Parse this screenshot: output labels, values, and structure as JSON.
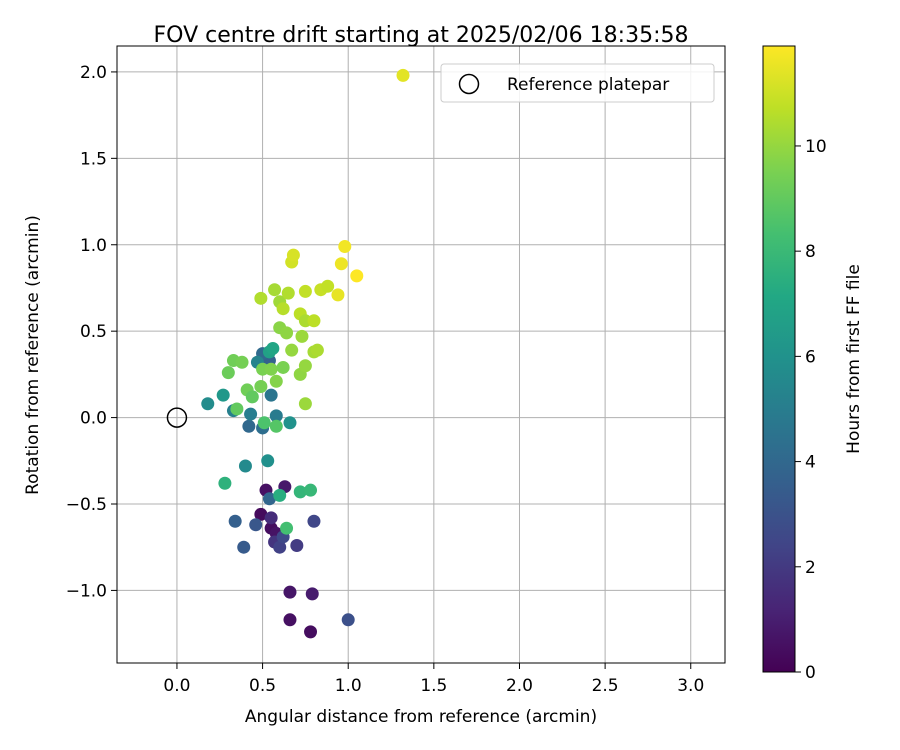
{
  "chart_data": {
    "type": "scatter",
    "title": "FOV centre drift starting at 2025/02/06 18:35:58",
    "xlabel": "Angular distance from reference (arcmin)",
    "ylabel": "Rotation from reference (arcmin)",
    "xlim": [
      -0.35,
      3.2
    ],
    "ylim": [
      -1.42,
      2.15
    ],
    "xticks": [
      "0.0",
      "0.5",
      "1.0",
      "1.5",
      "2.0",
      "2.5",
      "3.0"
    ],
    "yticks": [
      "−1.0",
      "−0.5",
      "0.0",
      "0.5",
      "1.0",
      "1.5",
      "2.0"
    ],
    "grid": true,
    "legend": {
      "position": "top-right",
      "label": "Reference platepar"
    },
    "reference_point": {
      "x": 0.0,
      "y": 0.0
    },
    "colorbar": {
      "label": "Hours from first FF file",
      "range": [
        0,
        11.9
      ],
      "ticks": [
        "0",
        "2",
        "4",
        "6",
        "8",
        "10"
      ],
      "colormap": "viridis"
    },
    "points": [
      {
        "x": 0.49,
        "y": -0.56,
        "h": 0.3
      },
      {
        "x": 0.52,
        "y": -0.42,
        "h": 0.5
      },
      {
        "x": 0.55,
        "y": -0.64,
        "h": 0.4
      },
      {
        "x": 0.58,
        "y": -0.67,
        "h": 0.6
      },
      {
        "x": 0.63,
        "y": -0.4,
        "h": 0.8
      },
      {
        "x": 0.66,
        "y": -1.01,
        "h": 0.7
      },
      {
        "x": 0.66,
        "y": -1.17,
        "h": 0.5
      },
      {
        "x": 0.78,
        "y": -1.24,
        "h": 0.4
      },
      {
        "x": 0.79,
        "y": -1.02,
        "h": 0.9
      },
      {
        "x": 0.55,
        "y": -0.58,
        "h": 1.5
      },
      {
        "x": 0.57,
        "y": -0.72,
        "h": 1.8
      },
      {
        "x": 0.6,
        "y": -0.75,
        "h": 2.3
      },
      {
        "x": 0.62,
        "y": -0.69,
        "h": 2.6
      },
      {
        "x": 0.7,
        "y": -0.74,
        "h": 2.1
      },
      {
        "x": 0.8,
        "y": -0.6,
        "h": 2.5
      },
      {
        "x": 1.0,
        "y": -1.17,
        "h": 2.9
      },
      {
        "x": 0.46,
        "y": -0.62,
        "h": 3.2
      },
      {
        "x": 0.34,
        "y": -0.6,
        "h": 3.6
      },
      {
        "x": 0.39,
        "y": -0.75,
        "h": 3.4
      },
      {
        "x": 0.54,
        "y": -0.47,
        "h": 3.9
      },
      {
        "x": 0.42,
        "y": -0.05,
        "h": 4.0
      },
      {
        "x": 0.5,
        "y": -0.06,
        "h": 4.3
      },
      {
        "x": 0.54,
        "y": 0.33,
        "h": 3.7
      },
      {
        "x": 0.5,
        "y": 0.37,
        "h": 4.1
      },
      {
        "x": 0.55,
        "y": 0.13,
        "h": 4.6
      },
      {
        "x": 0.58,
        "y": 0.01,
        "h": 4.9
      },
      {
        "x": 0.43,
        "y": 0.02,
        "h": 5.0
      },
      {
        "x": 0.33,
        "y": 0.04,
        "h": 5.1
      },
      {
        "x": 0.47,
        "y": 0.32,
        "h": 5.3
      },
      {
        "x": 0.4,
        "y": -0.28,
        "h": 5.6
      },
      {
        "x": 0.53,
        "y": -0.25,
        "h": 5.9
      },
      {
        "x": 0.66,
        "y": -0.03,
        "h": 6.0
      },
      {
        "x": 0.18,
        "y": 0.08,
        "h": 5.7
      },
      {
        "x": 0.27,
        "y": 0.13,
        "h": 6.3
      },
      {
        "x": 0.54,
        "y": 0.38,
        "h": 6.8
      },
      {
        "x": 0.56,
        "y": 0.4,
        "h": 7.0
      },
      {
        "x": 0.6,
        "y": -0.45,
        "h": 7.4
      },
      {
        "x": 0.72,
        "y": -0.43,
        "h": 7.8
      },
      {
        "x": 0.78,
        "y": -0.42,
        "h": 7.9
      },
      {
        "x": 0.64,
        "y": -0.64,
        "h": 8.3
      },
      {
        "x": 0.28,
        "y": -0.38,
        "h": 7.6
      },
      {
        "x": 0.51,
        "y": -0.03,
        "h": 8.5
      },
      {
        "x": 0.58,
        "y": -0.05,
        "h": 8.7
      },
      {
        "x": 0.35,
        "y": 0.05,
        "h": 9.0
      },
      {
        "x": 0.3,
        "y": 0.26,
        "h": 9.2
      },
      {
        "x": 0.33,
        "y": 0.33,
        "h": 9.3
      },
      {
        "x": 0.38,
        "y": 0.32,
        "h": 9.4
      },
      {
        "x": 0.41,
        "y": 0.16,
        "h": 9.3
      },
      {
        "x": 0.44,
        "y": 0.12,
        "h": 9.0
      },
      {
        "x": 0.49,
        "y": 0.18,
        "h": 9.4
      },
      {
        "x": 0.5,
        "y": 0.28,
        "h": 9.5
      },
      {
        "x": 0.55,
        "y": 0.28,
        "h": 9.6
      },
      {
        "x": 0.58,
        "y": 0.21,
        "h": 9.7
      },
      {
        "x": 0.62,
        "y": 0.29,
        "h": 9.5
      },
      {
        "x": 0.6,
        "y": 0.52,
        "h": 9.8
      },
      {
        "x": 0.64,
        "y": 0.49,
        "h": 9.9
      },
      {
        "x": 0.67,
        "y": 0.39,
        "h": 10.0
      },
      {
        "x": 0.72,
        "y": 0.25,
        "h": 9.9
      },
      {
        "x": 0.73,
        "y": 0.47,
        "h": 10.1
      },
      {
        "x": 0.75,
        "y": 0.3,
        "h": 10.0
      },
      {
        "x": 0.75,
        "y": 0.08,
        "h": 10.1
      },
      {
        "x": 0.8,
        "y": 0.38,
        "h": 10.3
      },
      {
        "x": 0.82,
        "y": 0.39,
        "h": 10.4
      },
      {
        "x": 0.49,
        "y": 0.69,
        "h": 10.5
      },
      {
        "x": 0.57,
        "y": 0.74,
        "h": 10.3
      },
      {
        "x": 0.6,
        "y": 0.67,
        "h": 10.2
      },
      {
        "x": 0.62,
        "y": 0.63,
        "h": 10.6
      },
      {
        "x": 0.65,
        "y": 0.72,
        "h": 10.5
      },
      {
        "x": 0.72,
        "y": 0.6,
        "h": 10.7
      },
      {
        "x": 0.75,
        "y": 0.56,
        "h": 10.4
      },
      {
        "x": 0.75,
        "y": 0.73,
        "h": 10.8
      },
      {
        "x": 0.8,
        "y": 0.56,
        "h": 10.7
      },
      {
        "x": 0.84,
        "y": 0.74,
        "h": 10.9
      },
      {
        "x": 0.88,
        "y": 0.76,
        "h": 10.8
      },
      {
        "x": 0.67,
        "y": 0.9,
        "h": 11.1
      },
      {
        "x": 0.68,
        "y": 0.94,
        "h": 11.2
      },
      {
        "x": 0.94,
        "y": 0.71,
        "h": 11.5
      },
      {
        "x": 0.96,
        "y": 0.89,
        "h": 11.6
      },
      {
        "x": 0.98,
        "y": 0.99,
        "h": 11.7
      },
      {
        "x": 1.05,
        "y": 0.82,
        "h": 11.9
      },
      {
        "x": 1.32,
        "y": 1.98,
        "h": 11.4
      }
    ]
  }
}
